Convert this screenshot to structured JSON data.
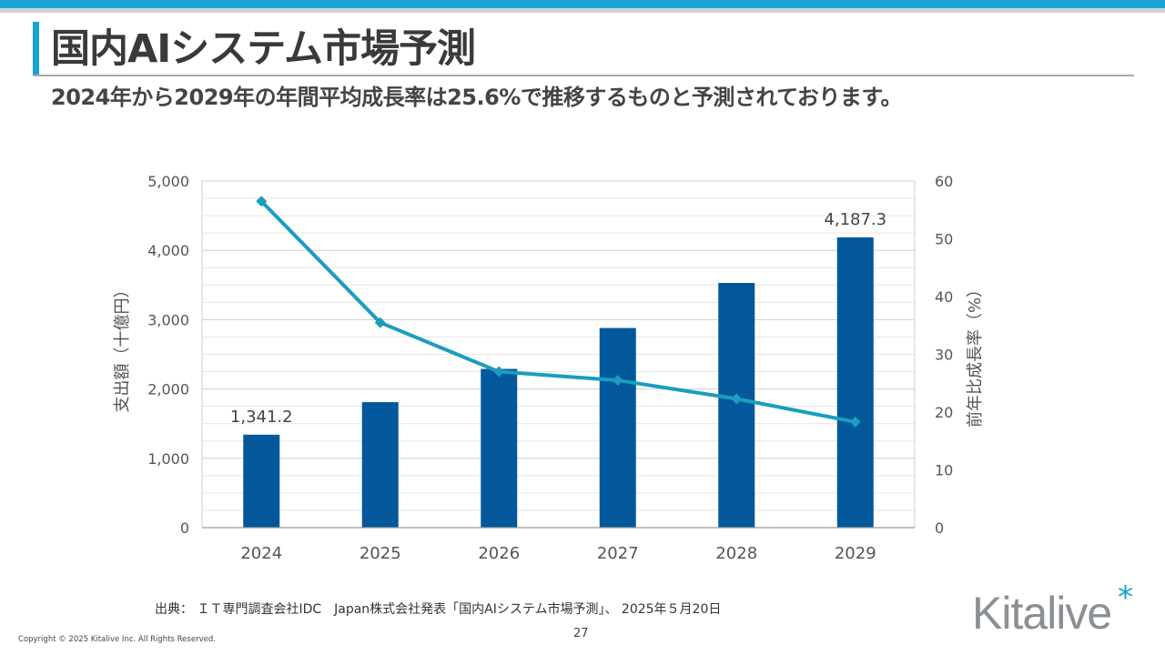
{
  "header": {
    "title": "国内AIシステム市場予測",
    "subtitle": "2024年から2029年の年間平均成長率は25.6%で推移するものと予測されております。"
  },
  "footer": {
    "source": "出典：  ＩＴ専門調査会社IDC　Japan株式会社発表「国内AIシステム市場予測」、 2025年５月20日",
    "page_number": "27",
    "copyright": "Copyright © 2025 Kitalive Inc. All Rights Reserved.",
    "logo_text": "Kitalive",
    "logo_mark": "*"
  },
  "colors": {
    "bar": "#03589b",
    "line": "#1b9dbd",
    "accent": "#16a3cf"
  },
  "chart_data": {
    "type": "bar",
    "categories": [
      "2024",
      "2025",
      "2026",
      "2027",
      "2028",
      "2029"
    ],
    "series": [
      {
        "name": "支出額",
        "type": "bar",
        "axis": "left",
        "values": [
          1341.2,
          1810,
          2290,
          2880,
          3530,
          4187.3
        ]
      },
      {
        "name": "前年比成長率",
        "type": "line",
        "axis": "right",
        "values": [
          56.5,
          35.5,
          27.0,
          25.5,
          22.3,
          18.3
        ]
      }
    ],
    "data_labels": [
      {
        "category": "2024",
        "text": "1,341.2"
      },
      {
        "category": "2029",
        "text": "4,187.3"
      }
    ],
    "ylabel": "支出額（十億円）",
    "y2label": "前年比成長率（%）",
    "ylim": [
      0,
      5000
    ],
    "y2lim": [
      0,
      60
    ],
    "yticks": [
      "0",
      "1,000",
      "2,000",
      "3,000",
      "4,000",
      "5,000"
    ],
    "y2ticks": [
      "0",
      "10",
      "20",
      "30",
      "40",
      "50",
      "60"
    ],
    "grid": true
  }
}
